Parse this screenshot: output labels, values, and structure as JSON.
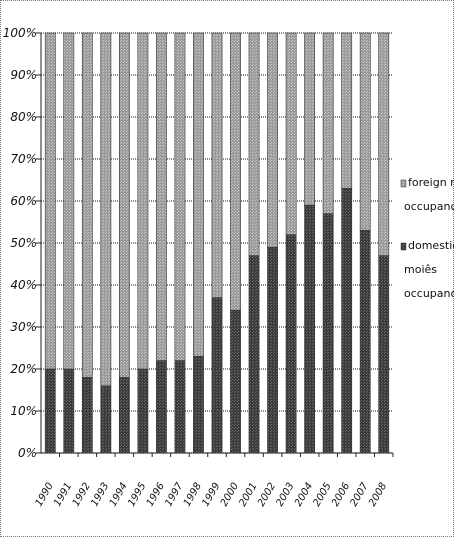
{
  "chart_data": {
    "type": "bar",
    "stacked": true,
    "categories": [
      "1990",
      "1991",
      "1992",
      "1993",
      "1994",
      "1995",
      "1996",
      "1997",
      "1998",
      "1999",
      "2000",
      "2001",
      "2002",
      "2003",
      "2004",
      "2005",
      "2006",
      "2007",
      "2008"
    ],
    "series": [
      {
        "name": "domestic moiês occupancy",
        "color": "#3a3a3a",
        "values": [
          20,
          20,
          18,
          16,
          18,
          20,
          22,
          22,
          23,
          37,
          34,
          47,
          49,
          52,
          59,
          57,
          63,
          53,
          47
        ]
      },
      {
        "name": "foreign moiês occupancy",
        "color": "#9a9a9a",
        "values": [
          80,
          80,
          82,
          84,
          82,
          80,
          78,
          78,
          77,
          63,
          66,
          53,
          51,
          48,
          41,
          43,
          37,
          47,
          53
        ]
      }
    ],
    "yticks": [
      "0%",
      "10%",
      "20%",
      "30%",
      "40%",
      "50%",
      "60%",
      "70%",
      "80%",
      "90%",
      "100%"
    ],
    "ylim": [
      0,
      100
    ],
    "grid": true,
    "legend": "right",
    "legend_labels": [
      [
        "foreign moiês",
        "occupancy"
      ],
      [
        "domestic",
        "moiês",
        "occupancy"
      ]
    ]
  }
}
